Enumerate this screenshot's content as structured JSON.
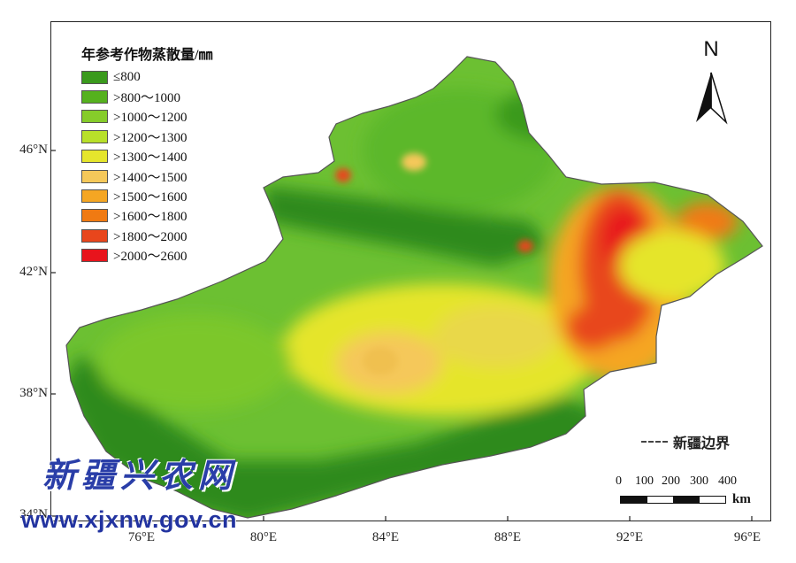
{
  "legend": {
    "title": "年参考作物蒸散量/㎜",
    "items": [
      {
        "label": "≤800",
        "color": "#3a9a1c"
      },
      {
        "label": ">800～1000",
        "color": "#55b11e"
      },
      {
        "label": ">1000～1200",
        "color": "#86cc2a"
      },
      {
        "label": ">1200～1300",
        "color": "#b8e02a"
      },
      {
        "label": ">1300～1400",
        "color": "#e5e52c"
      },
      {
        "label": ">1400～1500",
        "color": "#f5c85a"
      },
      {
        "label": ">1500～1600",
        "color": "#f5a623"
      },
      {
        "label": ">1600～1800",
        "color": "#f07a12"
      },
      {
        "label": ">1800～2000",
        "color": "#e8461c"
      },
      {
        "label": ">2000～2600",
        "color": "#e8141c"
      }
    ]
  },
  "axes": {
    "latitude_labels": [
      "46°N",
      "42°N",
      "38°N",
      "34°N"
    ],
    "longitude_labels": [
      "76°E",
      "80°E",
      "84°E",
      "88°E",
      "92°E",
      "96°E"
    ]
  },
  "north_arrow": {
    "letter": "N",
    "icon": "north-arrow-icon"
  },
  "boundary_legend": {
    "label": "新疆边界"
  },
  "scale_bar": {
    "ticks": [
      "0",
      "100",
      "200",
      "300",
      "400"
    ],
    "unit": "km"
  },
  "watermark": {
    "chinese": "新疆兴农网",
    "url": "www.xjxnw.gov.cn"
  }
}
